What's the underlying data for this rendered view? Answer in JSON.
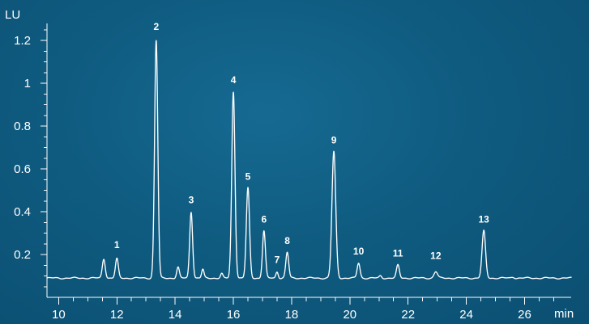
{
  "chart_data": {
    "type": "line",
    "title": "",
    "xlabel": "min",
    "ylabel": "LU",
    "xlim": [
      9.6,
      27.6
    ],
    "ylim": [
      0.0,
      1.28
    ],
    "baseline": 0.09,
    "x_ticks": [
      10,
      12,
      14,
      16,
      18,
      20,
      22,
      24,
      26
    ],
    "x_tick_labels": [
      "10",
      "12",
      "14",
      "16",
      "18",
      "20",
      "22",
      "24",
      "26"
    ],
    "y_ticks": [
      0.2,
      0.4,
      0.6,
      0.8,
      1.0,
      1.2
    ],
    "y_tick_labels": [
      "0.2",
      "0.4",
      "0.6",
      "0.8",
      "1",
      "1.2"
    ],
    "grid": false,
    "series": [
      {
        "name": "",
        "color": "#ffffff",
        "peaks": [
          {
            "label": "",
            "rt": 11.55,
            "height": 0.18,
            "width": 0.05
          },
          {
            "label": "1",
            "rt": 12.0,
            "height": 0.18,
            "width": 0.05
          },
          {
            "label": "2",
            "rt": 13.35,
            "height": 1.2,
            "width": 0.055
          },
          {
            "label": "",
            "rt": 14.1,
            "height": 0.14,
            "width": 0.045
          },
          {
            "label": "3",
            "rt": 14.55,
            "height": 0.4,
            "width": 0.05
          },
          {
            "label": "",
            "rt": 14.95,
            "height": 0.13,
            "width": 0.04
          },
          {
            "label": "",
            "rt": 15.6,
            "height": 0.11,
            "width": 0.04
          },
          {
            "label": "4",
            "rt": 16.0,
            "height": 0.96,
            "width": 0.055
          },
          {
            "label": "5",
            "rt": 16.5,
            "height": 0.51,
            "width": 0.055
          },
          {
            "label": "6",
            "rt": 17.05,
            "height": 0.31,
            "width": 0.05
          },
          {
            "label": "7",
            "rt": 17.5,
            "height": 0.12,
            "width": 0.04
          },
          {
            "label": "8",
            "rt": 17.85,
            "height": 0.21,
            "width": 0.05
          },
          {
            "label": "9",
            "rt": 19.45,
            "height": 0.68,
            "width": 0.065
          },
          {
            "label": "10",
            "rt": 20.3,
            "height": 0.16,
            "width": 0.05
          },
          {
            "label": "",
            "rt": 21.05,
            "height": 0.1,
            "width": 0.04
          },
          {
            "label": "11",
            "rt": 21.65,
            "height": 0.15,
            "width": 0.05
          },
          {
            "label": "12",
            "rt": 22.95,
            "height": 0.12,
            "width": 0.06
          },
          {
            "label": "13",
            "rt": 24.6,
            "height": 0.31,
            "width": 0.06
          },
          {
            "label": "",
            "rt": 25.6,
            "height": 0.095,
            "width": 0.05
          }
        ]
      }
    ],
    "peak_labels": [
      {
        "text": "1",
        "x": 12.0,
        "y": 0.23
      },
      {
        "text": "2",
        "x": 13.35,
        "y": 1.25
      },
      {
        "text": "3",
        "x": 14.55,
        "y": 0.44
      },
      {
        "text": "4",
        "x": 16.0,
        "y": 1.0
      },
      {
        "text": "5",
        "x": 16.5,
        "y": 0.55
      },
      {
        "text": "6",
        "x": 17.05,
        "y": 0.35
      },
      {
        "text": "7",
        "x": 17.5,
        "y": 0.16
      },
      {
        "text": "8",
        "x": 17.85,
        "y": 0.25
      },
      {
        "text": "9",
        "x": 19.45,
        "y": 0.72
      },
      {
        "text": "10",
        "x": 20.3,
        "y": 0.2
      },
      {
        "text": "11",
        "x": 21.65,
        "y": 0.19
      },
      {
        "text": "12",
        "x": 22.95,
        "y": 0.18
      },
      {
        "text": "13",
        "x": 24.6,
        "y": 0.35
      }
    ]
  }
}
